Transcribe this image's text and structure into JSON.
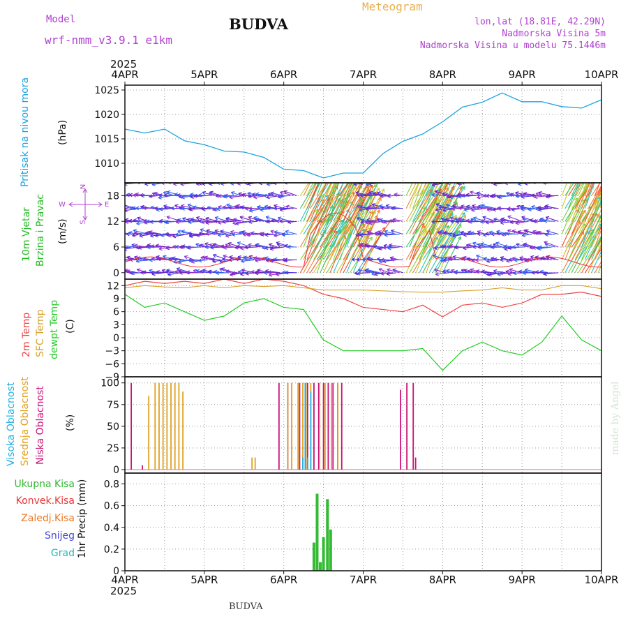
{
  "header": {
    "model_label": "Model",
    "model_name": "wrf-nmm_v3.9.1  e1km",
    "title": "BUDVA",
    "meteogram_label": "Meteogram",
    "lonlat": "lon,lat (18.81E, 42.29N)",
    "elevation": "Nadmorska Visina 5m",
    "model_elevation": "Nadmorska Visina u modelu 75.1446m",
    "footer_title": "BUDVA",
    "watermark": "made by Angel",
    "year_top": "2025",
    "year_bottom": "2025"
  },
  "colors": {
    "pressure": "#1aa3e0",
    "temp2m": "#ee4444",
    "sfc": "#d9a030",
    "dew": "#22cc22",
    "high_cloud": "#20b0e0",
    "mid_cloud": "#e0a020",
    "low_cloud": "#cc1177",
    "purple_text": "#b040d0",
    "orange_text": "#e8b050",
    "total_precip": "#33bb33",
    "conv_precip": "#ee3333",
    "frz_precip": "#ee7722",
    "snow": "#4444dd",
    "hail": "#22bbbb"
  },
  "panels": {
    "pressure": {
      "label": "Pritisak na nivou mora",
      "unit": "(hPa)"
    },
    "wind": {
      "label1": "10m Vjetar",
      "label2": "Brzina i Pravac",
      "unit": "(m/s)",
      "compass": {
        "n": "N",
        "s": "S",
        "e": "E",
        "w": "W"
      }
    },
    "temp": {
      "label1": "2m Temp",
      "label2": "SFC Temp",
      "label3": "dewpt Temp",
      "unit": "(C)"
    },
    "cloud": {
      "label1": "Visoka Oblacnost",
      "label2": "Srednja Oblacnost",
      "label3": "Niska Oblacnost",
      "unit": "(%)"
    },
    "precip": {
      "unit": "1hr Precip (mm)",
      "legend": [
        "Ukupna Kisa",
        "Konvek.Kisa",
        "Zaledj.Kisa",
        "Snijeg",
        "Grad"
      ]
    }
  },
  "chart_data": [
    {
      "type": "line",
      "name": "pressure",
      "x_ticks": [
        "4APR",
        "5APR",
        "6APR",
        "7APR",
        "8APR",
        "9APR",
        "10APR"
      ],
      "x": [
        0,
        0.25,
        0.5,
        0.75,
        1,
        1.25,
        1.5,
        1.75,
        2,
        2.25,
        2.5,
        2.75,
        3,
        3.25,
        3.5,
        3.75,
        4,
        4.25,
        4.5,
        4.75,
        5,
        5.25,
        5.5,
        5.75,
        6
      ],
      "values": [
        1017,
        1016.2,
        1017,
        1014.6,
        1013.8,
        1012.5,
        1012.3,
        1011.2,
        1008.8,
        1008.5,
        1007.0,
        1008.0,
        1008.0,
        1012.0,
        1014.5,
        1016.0,
        1018.5,
        1021.5,
        1022.5,
        1024.4,
        1022.6,
        1022.6,
        1021.6,
        1021.3,
        1023.0
      ],
      "y_ticks": [
        1010,
        1015,
        1020,
        1025
      ],
      "ylim": [
        1006,
        1026
      ]
    },
    {
      "type": "line",
      "name": "wind",
      "y_ticks": [
        0,
        6,
        12,
        18
      ],
      "ylim": [
        -1.5,
        21
      ]
    },
    {
      "type": "line",
      "name": "temperature",
      "x": [
        0,
        0.25,
        0.5,
        0.75,
        1,
        1.25,
        1.5,
        1.75,
        2,
        2.25,
        2.5,
        2.75,
        3,
        3.25,
        3.5,
        3.75,
        4,
        4.25,
        4.5,
        4.75,
        5,
        5.25,
        5.5,
        5.75,
        6
      ],
      "series": [
        {
          "name": "2m Temp",
          "values": [
            12,
            13,
            12.5,
            13,
            12.5,
            13.5,
            12.5,
            13.5,
            13,
            12,
            10,
            9,
            7,
            6.5,
            6,
            7.5,
            4.8,
            7.5,
            8,
            7,
            8,
            10,
            10,
            10.5,
            9.5
          ]
        },
        {
          "name": "SFC Temp",
          "values": [
            11.5,
            12,
            11.7,
            11.5,
            12,
            11.5,
            12,
            11.8,
            12,
            11.5,
            11,
            11,
            11,
            10.8,
            10.6,
            10.5,
            10.5,
            10.8,
            11,
            11.5,
            11,
            11,
            12,
            12,
            11.3
          ]
        },
        {
          "name": "dewpt Temp",
          "values": [
            10,
            7,
            8,
            6,
            4,
            5,
            8,
            9,
            7,
            6.5,
            -0.5,
            -3,
            -3,
            -3,
            -3,
            -2.5,
            -7.5,
            -3,
            -1,
            -3,
            -4,
            -1,
            5,
            -0.5,
            -3
          ]
        }
      ],
      "y_ticks": [
        -9,
        -6,
        -3,
        0,
        3,
        6,
        9,
        12
      ],
      "ylim": [
        -9,
        13.5
      ]
    },
    {
      "type": "bar",
      "name": "cloud",
      "series": [
        {
          "name": "Niska Oblacnost",
          "x": [
            0.08,
            0.22,
            1.94,
            2.05,
            2.2,
            2.3,
            2.38,
            2.44,
            2.5,
            2.56,
            2.62,
            2.68,
            2.73,
            3.47,
            3.55,
            3.63,
            3.66
          ],
          "values": [
            100,
            5,
            100,
            100,
            100,
            100,
            100,
            100,
            100,
            100,
            100,
            100,
            100,
            92,
            100,
            100,
            14
          ]
        },
        {
          "name": "Srednja Oblacnost",
          "x": [
            0.3,
            0.38,
            0.43,
            0.48,
            0.53,
            0.58,
            0.63,
            0.68,
            0.73,
            1.6,
            1.64,
            2.05,
            2.1,
            2.18,
            2.24,
            2.28,
            2.34,
            2.45,
            2.52,
            2.6,
            2.68
          ],
          "values": [
            85,
            100,
            100,
            100,
            100,
            100,
            100,
            100,
            90,
            14,
            14,
            100,
            100,
            100,
            100,
            100,
            100,
            100,
            100,
            100,
            100
          ]
        },
        {
          "name": "Visoka Oblacnost",
          "x": [
            2.24,
            2.27,
            2.3,
            2.34
          ],
          "values": [
            14,
            100,
            14,
            90
          ]
        }
      ],
      "y_ticks": [
        0,
        25,
        50,
        75,
        100
      ],
      "ylim": [
        -4,
        107
      ]
    },
    {
      "type": "bar",
      "name": "precipitation",
      "series": [
        {
          "name": "Ukupna Kisa",
          "x": [
            2.38,
            2.42,
            2.46,
            2.5,
            2.55,
            2.59
          ],
          "values": [
            0.26,
            0.71,
            0.08,
            0.31,
            0.66,
            0.38
          ]
        }
      ],
      "y_ticks": [
        0,
        0.2,
        0.4,
        0.6,
        0.8
      ],
      "ylim": [
        0,
        0.9
      ]
    }
  ]
}
